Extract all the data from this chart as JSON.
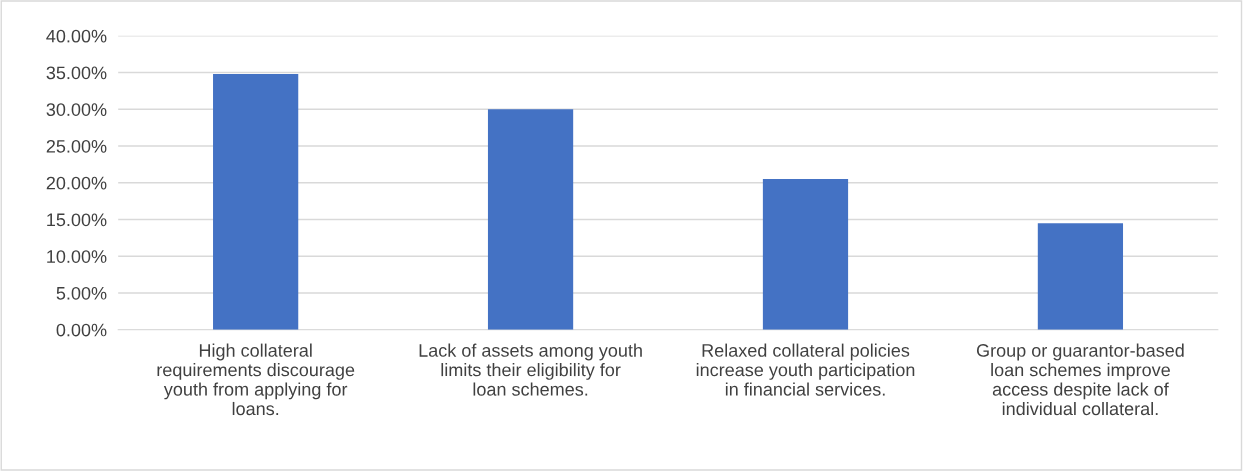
{
  "chart_data": {
    "type": "bar",
    "categories": [
      "High collateral\nrequirements discourage\nyouth from applying for\nloans.",
      "Lack of assets among youth\nlimits their eligibility for\nloan schemes.",
      "Relaxed collateral policies\nincrease youth participation\nin financial services.",
      "Group or guarantor-based\nloan schemes improve\naccess despite lack of\nindividual collateral."
    ],
    "values": [
      34.8,
      30.0,
      20.5,
      14.5
    ],
    "color": "#4472c4",
    "ylim": [
      0,
      40
    ],
    "yticks": [
      {
        "value": 0,
        "label": "0.00%"
      },
      {
        "value": 5,
        "label": "5.00%"
      },
      {
        "value": 10,
        "label": "10.00%"
      },
      {
        "value": 15,
        "label": "15.00%"
      },
      {
        "value": 20,
        "label": "20.00%"
      },
      {
        "value": 25,
        "label": "25.00%"
      },
      {
        "value": 30,
        "label": "30.00%"
      },
      {
        "value": 35,
        "label": "35.00%"
      },
      {
        "value": 40,
        "label": "40.00%"
      }
    ],
    "grid": "y"
  }
}
